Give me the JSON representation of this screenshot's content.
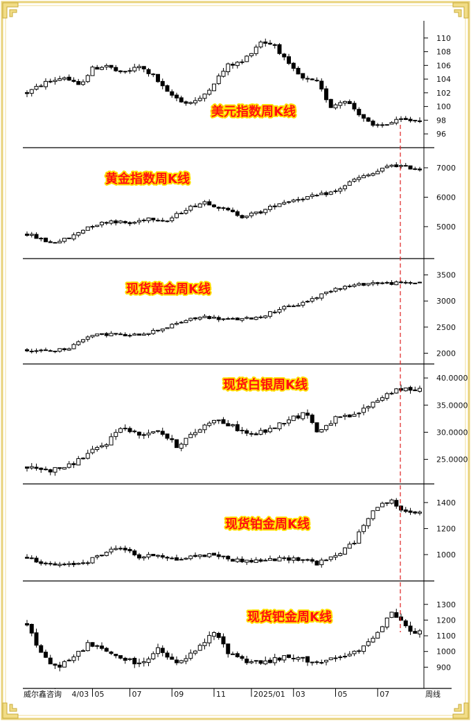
{
  "page": {
    "source_label": "威尔鑫咨询",
    "period_label": "周线"
  },
  "colors": {
    "frame": "#e8d27a",
    "frame_inner": "#f5e9b8",
    "title": "#ff1010",
    "title_outline": "#ffe000",
    "up": "#ffffff",
    "down": "#000000",
    "marker": "#e02020"
  },
  "x_axis": {
    "labels": [
      "2024/03",
      "05",
      "07",
      "09",
      "11",
      "2025/01",
      "03",
      "05",
      "07"
    ],
    "label_week_index": [
      6,
      14,
      22,
      31,
      40,
      48,
      57,
      66,
      75
    ],
    "week_count": 85
  },
  "chart_data": [
    {
      "type": "candlestick",
      "title": "美元指数周K线",
      "y_ticks": [
        96,
        98,
        100,
        102,
        104,
        106,
        108,
        110
      ],
      "ylim": [
        95,
        111.5
      ],
      "anchors": [
        [
          0,
          102
        ],
        [
          4,
          103.5
        ],
        [
          8,
          104.3
        ],
        [
          11,
          103
        ],
        [
          14,
          105.5
        ],
        [
          17,
          106
        ],
        [
          20,
          104.8
        ],
        [
          24,
          105.8
        ],
        [
          27,
          104.5
        ],
        [
          30,
          102
        ],
        [
          34,
          100.5
        ],
        [
          37,
          101
        ],
        [
          40,
          103.5
        ],
        [
          43,
          106
        ],
        [
          46,
          106.5
        ],
        [
          50,
          109.5
        ],
        [
          53,
          109
        ],
        [
          56,
          106
        ],
        [
          59,
          104
        ],
        [
          62,
          103.5
        ],
        [
          65,
          100
        ],
        [
          68,
          101
        ],
        [
          71,
          99
        ],
        [
          74,
          97
        ],
        [
          77,
          97.5
        ],
        [
          80,
          98
        ],
        [
          84,
          98
        ]
      ],
      "volatility": 0.65
    },
    {
      "type": "candlestick",
      "title": "黄金指数周K线",
      "y_ticks": [
        5000,
        6000,
        7000
      ],
      "ylim": [
        4150,
        7400
      ],
      "anchors": [
        [
          0,
          4750
        ],
        [
          5,
          4450
        ],
        [
          9,
          4600
        ],
        [
          13,
          5000
        ],
        [
          18,
          5200
        ],
        [
          22,
          5100
        ],
        [
          26,
          5300
        ],
        [
          30,
          5200
        ],
        [
          34,
          5600
        ],
        [
          38,
          5850
        ],
        [
          42,
          5600
        ],
        [
          46,
          5350
        ],
        [
          50,
          5500
        ],
        [
          54,
          5800
        ],
        [
          58,
          5950
        ],
        [
          62,
          6050
        ],
        [
          66,
          6200
        ],
        [
          70,
          6600
        ],
        [
          74,
          6800
        ],
        [
          78,
          7100
        ],
        [
          82,
          7000
        ],
        [
          84,
          6950
        ]
      ],
      "volatility": 120
    },
    {
      "type": "candlestick",
      "title": "现货黄金周K线",
      "y_ticks": [
        2000,
        2500,
        3000,
        3500
      ],
      "ylim": [
        1900,
        3680
      ],
      "anchors": [
        [
          0,
          2060
        ],
        [
          5,
          2040
        ],
        [
          9,
          2100
        ],
        [
          13,
          2330
        ],
        [
          18,
          2370
        ],
        [
          22,
          2330
        ],
        [
          26,
          2400
        ],
        [
          30,
          2500
        ],
        [
          34,
          2630
        ],
        [
          38,
          2700
        ],
        [
          42,
          2650
        ],
        [
          46,
          2650
        ],
        [
          50,
          2700
        ],
        [
          54,
          2850
        ],
        [
          58,
          2930
        ],
        [
          62,
          3080
        ],
        [
          66,
          3250
        ],
        [
          70,
          3300
        ],
        [
          74,
          3350
        ],
        [
          78,
          3340
        ],
        [
          82,
          3350
        ],
        [
          84,
          3360
        ]
      ],
      "volatility": 60
    },
    {
      "type": "candlestick",
      "title": "现货白银周K线",
      "y_ticks": [
        25,
        30,
        35,
        40
      ],
      "tick_labels": [
        "25.0000",
        "30.0000",
        "35.0000",
        "40.0000"
      ],
      "ylim": [
        21.5,
        41.3
      ],
      "anchors": [
        [
          0,
          23.5
        ],
        [
          5,
          23
        ],
        [
          9,
          23.8
        ],
        [
          13,
          26
        ],
        [
          17,
          28
        ],
        [
          20,
          31
        ],
        [
          24,
          29.5
        ],
        [
          28,
          30.5
        ],
        [
          32,
          27.5
        ],
        [
          36,
          30
        ],
        [
          40,
          32.5
        ],
        [
          44,
          31
        ],
        [
          48,
          29.5
        ],
        [
          52,
          30.5
        ],
        [
          56,
          32.5
        ],
        [
          60,
          33.5
        ],
        [
          62,
          30
        ],
        [
          66,
          32.5
        ],
        [
          70,
          33
        ],
        [
          74,
          35.5
        ],
        [
          78,
          37.5
        ],
        [
          82,
          38
        ],
        [
          84,
          38
        ]
      ],
      "volatility": 0.9
    },
    {
      "type": "candlestick",
      "title": "现货铂金周K线",
      "y_ticks": [
        1000,
        1200,
        1400
      ],
      "ylim": [
        840,
        1490
      ],
      "anchors": [
        [
          0,
          980
        ],
        [
          5,
          920
        ],
        [
          9,
          920
        ],
        [
          13,
          950
        ],
        [
          17,
          1020
        ],
        [
          20,
          1060
        ],
        [
          24,
          980
        ],
        [
          28,
          1000
        ],
        [
          32,
          960
        ],
        [
          36,
          990
        ],
        [
          40,
          1000
        ],
        [
          44,
          960
        ],
        [
          48,
          950
        ],
        [
          52,
          960
        ],
        [
          56,
          970
        ],
        [
          60,
          960
        ],
        [
          62,
          930
        ],
        [
          66,
          990
        ],
        [
          70,
          1100
        ],
        [
          74,
          1350
        ],
        [
          78,
          1420
        ],
        [
          80,
          1330
        ],
        [
          84,
          1330
        ]
      ],
      "volatility": 30
    },
    {
      "type": "candlestick",
      "title": "现货钯金周K线",
      "y_ticks": [
        900,
        1000,
        1100,
        1200,
        1300
      ],
      "ylim": [
        800,
        1405
      ],
      "anchors": [
        [
          0,
          1180
        ],
        [
          3,
          980
        ],
        [
          6,
          900
        ],
        [
          10,
          960
        ],
        [
          13,
          1050
        ],
        [
          17,
          1000
        ],
        [
          20,
          960
        ],
        [
          24,
          920
        ],
        [
          28,
          1010
        ],
        [
          32,
          920
        ],
        [
          36,
          1000
        ],
        [
          40,
          1120
        ],
        [
          43,
          1000
        ],
        [
          47,
          940
        ],
        [
          51,
          930
        ],
        [
          55,
          960
        ],
        [
          59,
          950
        ],
        [
          63,
          930
        ],
        [
          67,
          960
        ],
        [
          71,
          1000
        ],
        [
          75,
          1130
        ],
        [
          78,
          1250
        ],
        [
          80,
          1200
        ],
        [
          82,
          1120
        ],
        [
          84,
          1120
        ]
      ],
      "volatility": 35
    }
  ]
}
